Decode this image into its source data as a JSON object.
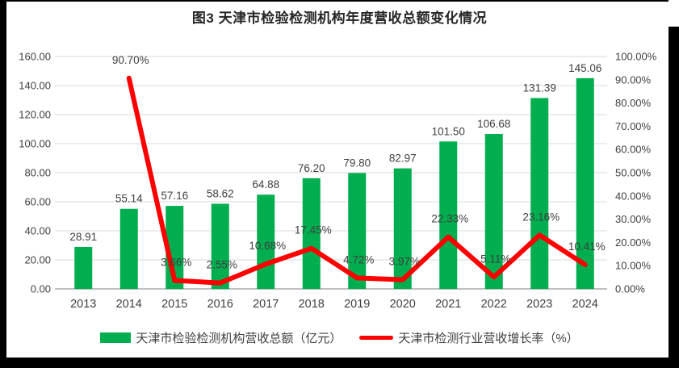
{
  "title": "图3 天津市检验检测机构年度营收总额变化情况",
  "colors": {
    "bar_green": "#00AD4F",
    "line_red": "#FE0000",
    "gridline": "#D9D9D9",
    "axis_line": "#BFBFBF",
    "tick_text": "#595959",
    "label_text": "#404040",
    "title_text": "#262626",
    "panel_bg": "#FFFFFF",
    "frame_bg": "#000000"
  },
  "legend": {
    "items": [
      {
        "swatch": "bar",
        "label": "天津市检验检测机构营收总额（亿元）"
      },
      {
        "swatch": "line",
        "label": "天津市检测行业营收增长率（%）"
      }
    ]
  },
  "chart_data": {
    "type": "bar",
    "subtype": "combo bar + line, dual axis",
    "title": "图3 天津市检验检测机构年度营收总额变化情况",
    "categories": [
      "2013",
      "2014",
      "2015",
      "2016",
      "2017",
      "2018",
      "2019",
      "2020",
      "2021",
      "2022",
      "2023",
      "2024"
    ],
    "series": [
      {
        "name": "天津市检验检测机构营收总额（亿元）",
        "type": "bar",
        "axis": "left",
        "values": [
          28.91,
          55.14,
          57.16,
          58.62,
          64.88,
          76.2,
          79.8,
          82.97,
          101.5,
          106.68,
          131.39,
          145.06
        ],
        "data_labels": [
          "28.91",
          "55.14",
          "57.16",
          "58.62",
          "64.88",
          "76.20",
          "79.80",
          "82.97",
          "101.50",
          "106.68",
          "131.39",
          "145.06"
        ]
      },
      {
        "name": "天津市检测行业营收增长率（%）",
        "type": "line",
        "axis": "right",
        "values": [
          null,
          90.7,
          3.66,
          2.55,
          10.68,
          17.45,
          4.72,
          3.97,
          22.33,
          5.11,
          23.16,
          10.41
        ],
        "data_labels": [
          null,
          "90.70%",
          "3.66%",
          "2.55%",
          "10.68%",
          "17.45%",
          "4.72%",
          "3.97%",
          "22.33%",
          "5.11%",
          "23.16%",
          "10.41%"
        ]
      }
    ],
    "left_axis": {
      "min": 0,
      "max": 160,
      "step": 20,
      "tick_labels": [
        "0.00",
        "20.00",
        "40.00",
        "60.00",
        "80.00",
        "100.00",
        "120.00",
        "140.00",
        "160.00"
      ]
    },
    "right_axis": {
      "min": 0,
      "max": 100,
      "step": 10,
      "tick_labels": [
        "0.00%",
        "10.00%",
        "20.00%",
        "30.00%",
        "40.00%",
        "50.00%",
        "60.00%",
        "70.00%",
        "80.00%",
        "90.00%",
        "100.00%"
      ]
    },
    "grid": "horizontal gridlines at left-axis steps, legend at bottom center",
    "xlabel": "",
    "ylabel_left": "亿元",
    "ylabel_right": "%"
  }
}
